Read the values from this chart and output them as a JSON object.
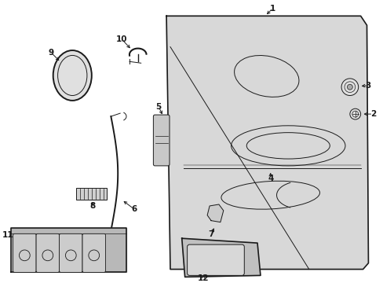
{
  "bg_color": "#ffffff",
  "line_color": "#1a1a1a",
  "fill_door": "#d8d8d8",
  "fill_component": "#cccccc",
  "fill_light": "#e8e8e8",
  "figsize": [
    4.89,
    3.6
  ],
  "dpi": 100,
  "door_x": [
    210,
    462,
    470,
    472,
    465,
    215,
    210
  ],
  "door_y": [
    340,
    340,
    328,
    20,
    12,
    12,
    340
  ],
  "label_fs": 7.5,
  "lw_main": 1.2,
  "lw_thin": 0.7
}
